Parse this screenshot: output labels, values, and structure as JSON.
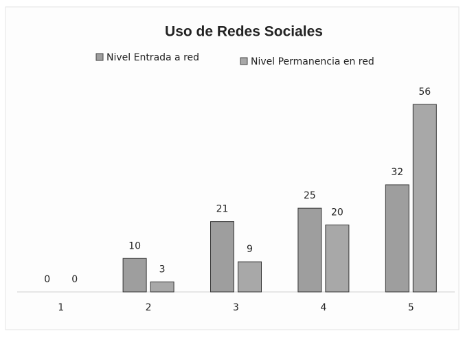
{
  "chart_data": {
    "type": "bar",
    "title": "Uso de Redes Sociales",
    "categories": [
      "1",
      "2",
      "3",
      "4",
      "5"
    ],
    "series": [
      {
        "name": "Nivel Entrada a red",
        "color": "#9e9e9e",
        "values": [
          0,
          10,
          21,
          25,
          32
        ]
      },
      {
        "name": "Nivel Permanencia en red",
        "color": "#a8a8a8",
        "values": [
          0,
          3,
          9,
          20,
          56
        ]
      }
    ],
    "legend": "top"
  }
}
